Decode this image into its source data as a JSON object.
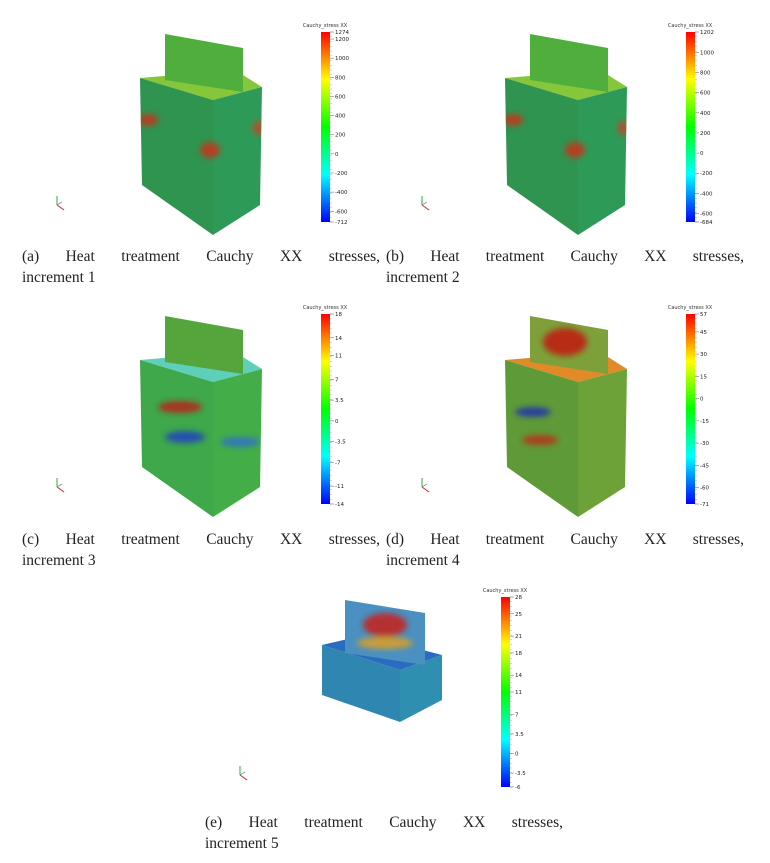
{
  "figures": [
    {
      "label": "(a)",
      "caption_line1": "Heat treatment Cauchy XX stresses,",
      "caption_line2": "increment 1",
      "colorbar": {
        "title": "Cauchy_stress XX",
        "min": -712,
        "max": 1274,
        "ticks": [
          "1274",
          "1200",
          "1000",
          "800",
          "600",
          "400",
          "200",
          "0",
          "-200",
          "-400",
          "-600",
          "-712"
        ]
      }
    },
    {
      "label": "(b)",
      "caption_line1": "Heat treatment Cauchy XX stresses,",
      "caption_line2": "increment 2",
      "colorbar": {
        "title": "Cauchy_stress XX",
        "min": -684,
        "max": 1202,
        "ticks": [
          "1202",
          "1000",
          "800",
          "600",
          "400",
          "200",
          "0",
          "-200",
          "-400",
          "-600",
          "-684"
        ]
      }
    },
    {
      "label": "(c)",
      "caption_line1": "Heat treatment Cauchy XX stresses,",
      "caption_line2": "increment 3",
      "colorbar": {
        "title": "Cauchy_stress XX",
        "min": -14,
        "max": 18,
        "ticks": [
          "18",
          "14",
          "11",
          "7",
          "3.5",
          "0",
          "-3.5",
          "-7",
          "-11",
          "-14"
        ]
      }
    },
    {
      "label": "(d)",
      "caption_line1": "Heat treatment Cauchy XX stresses,",
      "caption_line2": "increment 4",
      "colorbar": {
        "title": "Cauchy_stress XX",
        "min": -71,
        "max": 57,
        "ticks": [
          "57",
          "45",
          "30",
          "15",
          "0",
          "-15",
          "-30",
          "-45",
          "-60",
          "-71"
        ]
      }
    },
    {
      "label": "(e)",
      "caption_line1": "Heat treatment Cauchy XX stresses,",
      "caption_line2": "increment 5",
      "colorbar": {
        "title": "Cauchy_stress XX",
        "min": -6,
        "max": 28,
        "ticks": [
          "28",
          "25",
          "21",
          "18",
          "14",
          "11",
          "7",
          "3.5",
          "0",
          "-3.5",
          "-6"
        ]
      }
    }
  ],
  "colormap": [
    "#0000ff",
    "#00ffff",
    "#00ff00",
    "#ffff00",
    "#ff0000"
  ]
}
